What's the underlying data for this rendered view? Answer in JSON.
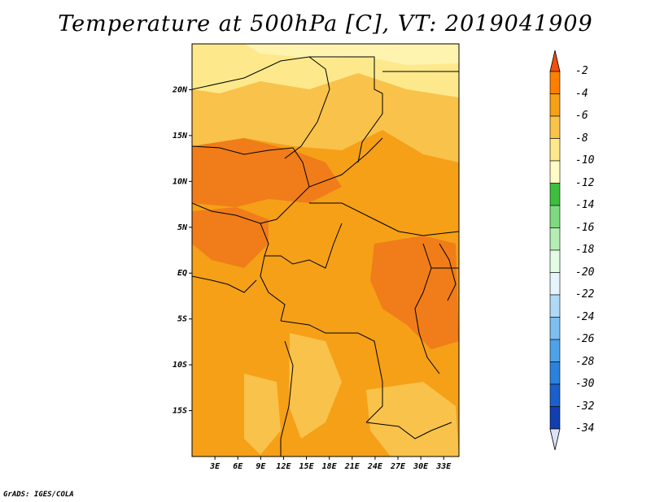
{
  "title": "Temperature at 500hPa [C], VT: 2019041909",
  "credit": "GrADS: IGES/COLA",
  "map": {
    "lat_range": [
      -20,
      25
    ],
    "lon_range": [
      0,
      35
    ],
    "lat_ticks": [
      "20N",
      "15N",
      "10N",
      "5N",
      "EQ",
      "5S",
      "10S",
      "15S"
    ],
    "lon_ticks": [
      "3E",
      "6E",
      "9E",
      "12E",
      "15E",
      "18E",
      "21E",
      "24E",
      "27E",
      "30E",
      "33E"
    ]
  },
  "colorbar": {
    "labels": [
      "-2",
      "-4",
      "-6",
      "-8",
      "-10",
      "-12",
      "-14",
      "-16",
      "-18",
      "-20",
      "-22",
      "-24",
      "-26",
      "-28",
      "-30",
      "-32",
      "-34"
    ],
    "colors": [
      "#f0500a",
      "#ff7f00",
      "#f5a017",
      "#f9c24a",
      "#fde98c",
      "#fffcc6",
      "#3dbf3d",
      "#7fda7f",
      "#b4eeb4",
      "#e4fbe4",
      "#e6f4fc",
      "#b0d9f5",
      "#7dbff0",
      "#4da2e8",
      "#2a82dc",
      "#1a5fcc",
      "#0f3fb0",
      "#0a1f7d"
    ],
    "top_arrow_color": "#f0500a",
    "bottom_arrow_color": "#dce2f7"
  },
  "field_colors": {
    "base": "#f5a017",
    "warm": "#f07d19",
    "cool": "#f9c24a",
    "cooler": "#fde98c",
    "coolest": "#fff3b0"
  }
}
